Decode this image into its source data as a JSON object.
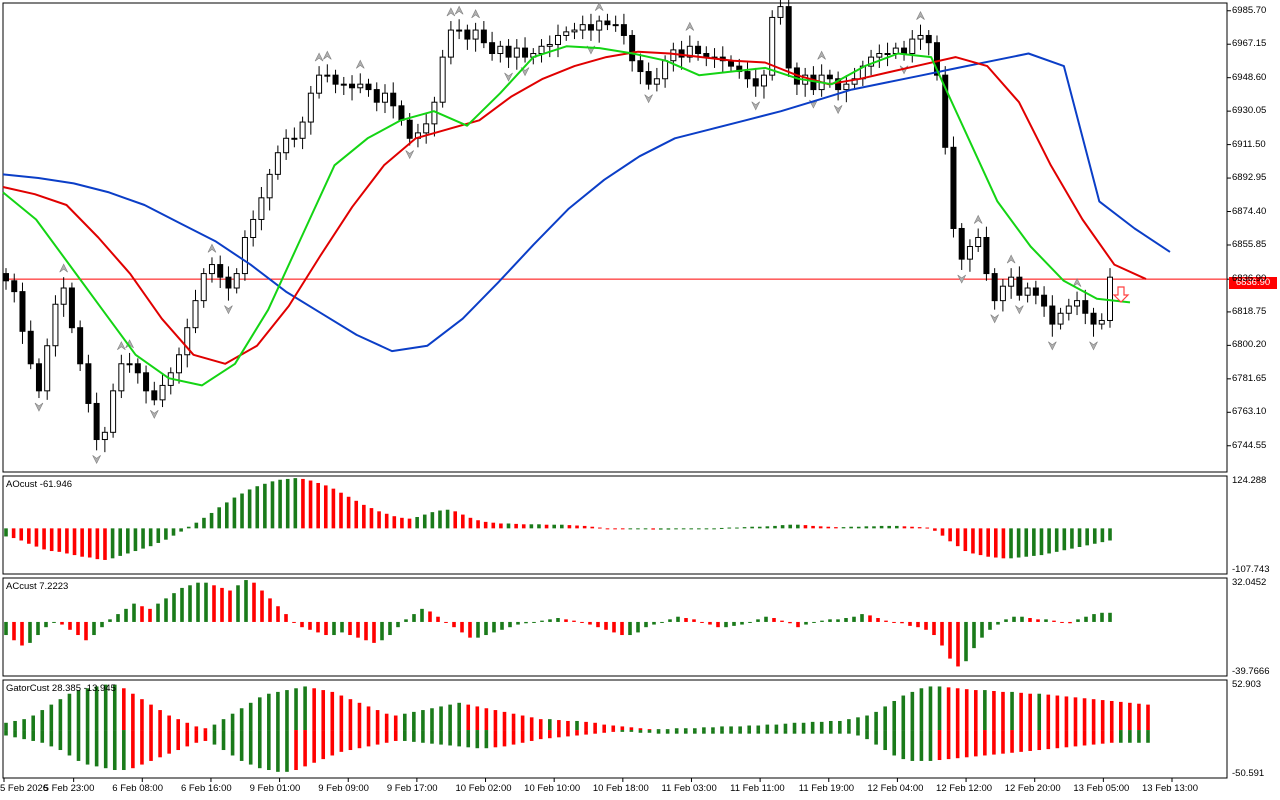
{
  "chart_data": [
    {
      "type": "candlestick",
      "x_labels": [
        "5 Feb 2026",
        "5 Feb 23:00",
        "6 Feb 08:00",
        "6 Feb 16:00",
        "9 Feb 01:00",
        "9 Feb 09:00",
        "9 Feb 17:00",
        "10 Feb 02:00",
        "10 Feb 10:00",
        "10 Feb 18:00",
        "11 Feb 03:00",
        "11 Feb 11:00",
        "11 Feb 19:00",
        "12 Feb 04:00",
        "12 Feb 12:00",
        "12 Feb 20:00",
        "13 Feb 05:00",
        "13 Feb 13:00"
      ],
      "y_ticks": [
        "6985.70",
        "6967.15",
        "6948.60",
        "6930.05",
        "6911.50",
        "6892.95",
        "6874.40",
        "6855.85",
        "6836.90",
        "6818.75",
        "6800.20",
        "6781.65",
        "6763.10",
        "6744.55"
      ],
      "ylim": [
        6730,
        6990
      ],
      "current_price": "6836.90",
      "current_value": 6836.9,
      "closes": [
        6836,
        6830,
        6808,
        6790,
        6775,
        6800,
        6823,
        6832,
        6810,
        6790,
        6768,
        6748,
        6752,
        6775,
        6790,
        6790,
        6785,
        6775,
        6770,
        6778,
        6785,
        6795,
        6810,
        6825,
        6840,
        6845,
        6838,
        6832,
        6840,
        6860,
        6870,
        6882,
        6895,
        6907,
        6915,
        6915,
        6924,
        6940,
        6950,
        6950,
        6945,
        6945,
        6943,
        6945,
        6942,
        6935,
        6940,
        6933,
        6925,
        6915,
        6918,
        6923,
        6935,
        6960,
        6975,
        6975,
        6970,
        6975,
        6968,
        6962,
        6966,
        6960,
        6965,
        6960,
        6962,
        6966,
        6967,
        6972,
        6974,
        6975,
        6978,
        6975,
        6980,
        6978,
        6978,
        6972,
        6958,
        6952,
        6945,
        6948,
        6958,
        6964,
        6960,
        6966,
        6962,
        6960,
        6960,
        6958,
        6955,
        6952,
        6948,
        6944,
        6950,
        6982,
        6988,
        6954,
        6945,
        6950,
        6942,
        6950,
        6948,
        6942,
        6945,
        6948,
        6955,
        6960,
        6962,
        6962,
        6965,
        6962,
        6970,
        6972,
        6968,
        6950,
        6910,
        6865,
        6848,
        6855,
        6860,
        6840,
        6825,
        6833,
        6838,
        6828,
        6832,
        6828,
        6822,
        6812,
        6818,
        6822,
        6825,
        6818,
        6812,
        6814,
        6838
      ],
      "lines": [
        {
          "name": "blue",
          "color": "#0b3ec7",
          "values": [
            6895,
            6893,
            6890,
            6885,
            6878,
            6868,
            6858,
            6845,
            6830,
            6818,
            6806,
            6797,
            6800,
            6815,
            6835,
            6856,
            6876,
            6892,
            6905,
            6915,
            6920,
            6925,
            6930,
            6936,
            6942,
            6946,
            6950,
            6954,
            6958,
            6962,
            6955,
            6880,
            6865,
            6852
          ]
        },
        {
          "name": "red",
          "color": "#e00000",
          "values": [
            6888,
            6884,
            6878,
            6860,
            6840,
            6815,
            6795,
            6790,
            6800,
            6822,
            6850,
            6877,
            6900,
            6915,
            6920,
            6925,
            6938,
            6948,
            6955,
            6960,
            6963,
            6962,
            6960,
            6958,
            6957,
            6950,
            6945,
            6948,
            6952,
            6956,
            6960,
            6955,
            6935,
            6900,
            6870,
            6845,
            6837
          ]
        },
        {
          "name": "green",
          "color": "#14d414",
          "values": [
            6885,
            6870,
            6845,
            6820,
            6795,
            6782,
            6778,
            6790,
            6820,
            6860,
            6900,
            6915,
            6925,
            6930,
            6922,
            6940,
            6960,
            6966,
            6965,
            6962,
            6958,
            6950,
            6952,
            6954,
            6948,
            6945,
            6955,
            6962,
            6960,
            6920,
            6880,
            6855,
            6836,
            6826,
            6824
          ]
        }
      ]
    },
    {
      "type": "bar",
      "name_label": "AOcust -61.946",
      "y_ticks": [
        "124.288",
        "-107.743"
      ],
      "ylim": [
        -107.743,
        124.288
      ],
      "values": [
        -20,
        -24,
        -30,
        -38,
        -45,
        -52,
        -56,
        -58,
        -62,
        -66,
        -70,
        -72,
        -76,
        -78,
        -74,
        -68,
        -62,
        -56,
        -50,
        -44,
        -36,
        -28,
        -18,
        -8,
        4,
        14,
        26,
        38,
        52,
        64,
        76,
        86,
        96,
        104,
        110,
        116,
        120,
        122,
        124,
        122,
        118,
        112,
        106,
        98,
        88,
        78,
        68,
        58,
        50,
        42,
        36,
        30,
        26,
        24,
        28,
        34,
        40,
        44,
        46,
        42,
        34,
        26,
        20,
        16,
        14,
        12,
        12,
        11,
        10,
        10,
        10,
        9,
        9,
        9,
        8,
        7,
        6,
        4,
        2,
        0,
        -1,
        -2,
        -2,
        -2,
        -2,
        -3,
        -3,
        -3,
        -2,
        -2,
        -2,
        -1,
        -1,
        0,
        1,
        2,
        2,
        3,
        4,
        4,
        5,
        6,
        8,
        9,
        9,
        8,
        6,
        5,
        4,
        3,
        3,
        4,
        4,
        5,
        5,
        6,
        6,
        6,
        5,
        4,
        3,
        2,
        -6,
        -18,
        -32,
        -44,
        -56,
        -62,
        -66,
        -70,
        -72,
        -74,
        -74,
        -72,
        -70,
        -68,
        -66,
        -62,
        -58,
        -54,
        -50,
        -46,
        -42,
        -38,
        -34,
        -30
      ],
      "colors": {
        "up": "#1a7a1a",
        "down": "#ff0000"
      }
    },
    {
      "type": "bar",
      "name_label": "ACcust 7.2223",
      "y_ticks": [
        "32.0452",
        "-39.7666"
      ],
      "ylim": [
        -39.7666,
        32.0452
      ],
      "values": [
        -10,
        -14,
        -18,
        -16,
        -10,
        -4,
        0,
        -2,
        -6,
        -10,
        -14,
        -10,
        -4,
        2,
        6,
        10,
        14,
        12,
        10,
        14,
        18,
        22,
        26,
        28,
        30,
        30,
        28,
        26,
        24,
        28,
        32,
        30,
        24,
        18,
        12,
        6,
        0,
        -4,
        -6,
        -8,
        -10,
        -10,
        -8,
        -10,
        -12,
        -14,
        -16,
        -14,
        -10,
        -4,
        2,
        6,
        10,
        8,
        4,
        0,
        -4,
        -8,
        -12,
        -12,
        -10,
        -8,
        -6,
        -4,
        -2,
        -1,
        0,
        1,
        2,
        3,
        2,
        1,
        0,
        -2,
        -4,
        -6,
        -8,
        -10,
        -10,
        -8,
        -4,
        -2,
        0,
        2,
        4,
        3,
        2,
        0,
        -2,
        -4,
        -4,
        -3,
        -2,
        0,
        2,
        4,
        3,
        1,
        -1,
        -4,
        -2,
        0,
        1,
        2,
        2,
        3,
        4,
        6,
        5,
        3,
        1,
        0,
        -1,
        -3,
        -4,
        -6,
        -10,
        -18,
        -28,
        -34,
        -30,
        -20,
        -12,
        -6,
        -2,
        2,
        4,
        4,
        3,
        2,
        2,
        1,
        0,
        -1,
        2,
        4,
        6,
        7,
        7
      ]
    },
    {
      "type": "bar",
      "name_label": "GatorCust 28.385 -13.945",
      "y_ticks": [
        "52.903",
        "-50.591"
      ],
      "ylim": [
        -50.591,
        52.903
      ],
      "upper": [
        8,
        10,
        12,
        16,
        22,
        28,
        34,
        40,
        44,
        46,
        48,
        50,
        50,
        46,
        40,
        34,
        28,
        22,
        16,
        12,
        8,
        4,
        2,
        6,
        12,
        18,
        24,
        30,
        36,
        40,
        42,
        44,
        46,
        48,
        46,
        44,
        42,
        38,
        34,
        30,
        26,
        22,
        18,
        16,
        18,
        20,
        22,
        24,
        26,
        28,
        30,
        28,
        26,
        24,
        22,
        20,
        18,
        16,
        14,
        12,
        12,
        11,
        10,
        10,
        9,
        8,
        6,
        5,
        4,
        3,
        2,
        1,
        1,
        1,
        2,
        2,
        2,
        3,
        3,
        4,
        4,
        4,
        5,
        5,
        6,
        6,
        7,
        8,
        8,
        9,
        9,
        10,
        10,
        12,
        14,
        16,
        20,
        26,
        32,
        38,
        42,
        46,
        48,
        48,
        47,
        46,
        45,
        44,
        44,
        43,
        42,
        42,
        41,
        40,
        40,
        39,
        38,
        37,
        36,
        35,
        34,
        33,
        32,
        31,
        30,
        29,
        28
      ],
      "lower": [
        -6,
        -8,
        -10,
        -12,
        -14,
        -18,
        -22,
        -28,
        -34,
        -38,
        -40,
        -42,
        -44,
        -44,
        -42,
        -38,
        -34,
        -30,
        -26,
        -22,
        -18,
        -14,
        -12,
        -16,
        -22,
        -28,
        -34,
        -38,
        -42,
        -44,
        -46,
        -46,
        -44,
        -40,
        -36,
        -32,
        -28,
        -24,
        -22,
        -20,
        -18,
        -16,
        -14,
        -12,
        -12,
        -13,
        -14,
        -15,
        -16,
        -17,
        -18,
        -19,
        -20,
        -20,
        -19,
        -18,
        -16,
        -14,
        -12,
        -10,
        -9,
        -8,
        -7,
        -6,
        -5,
        -4,
        -3,
        -2,
        -2,
        -2,
        -3,
        -3,
        -4,
        -4,
        -4,
        -4,
        -4,
        -4,
        -4,
        -4,
        -4,
        -4,
        -4,
        -4,
        -4,
        -4,
        -4,
        -4,
        -4,
        -4,
        -4,
        -4,
        -4,
        -4,
        -6,
        -10,
        -16,
        -22,
        -28,
        -32,
        -34,
        -34,
        -34,
        -33,
        -32,
        -31,
        -30,
        -29,
        -28,
        -27,
        -26,
        -25,
        -24,
        -23,
        -22,
        -21,
        -20,
        -19,
        -18,
        -17,
        -16,
        -15,
        -14,
        -14,
        -14,
        -14,
        -14
      ]
    }
  ]
}
